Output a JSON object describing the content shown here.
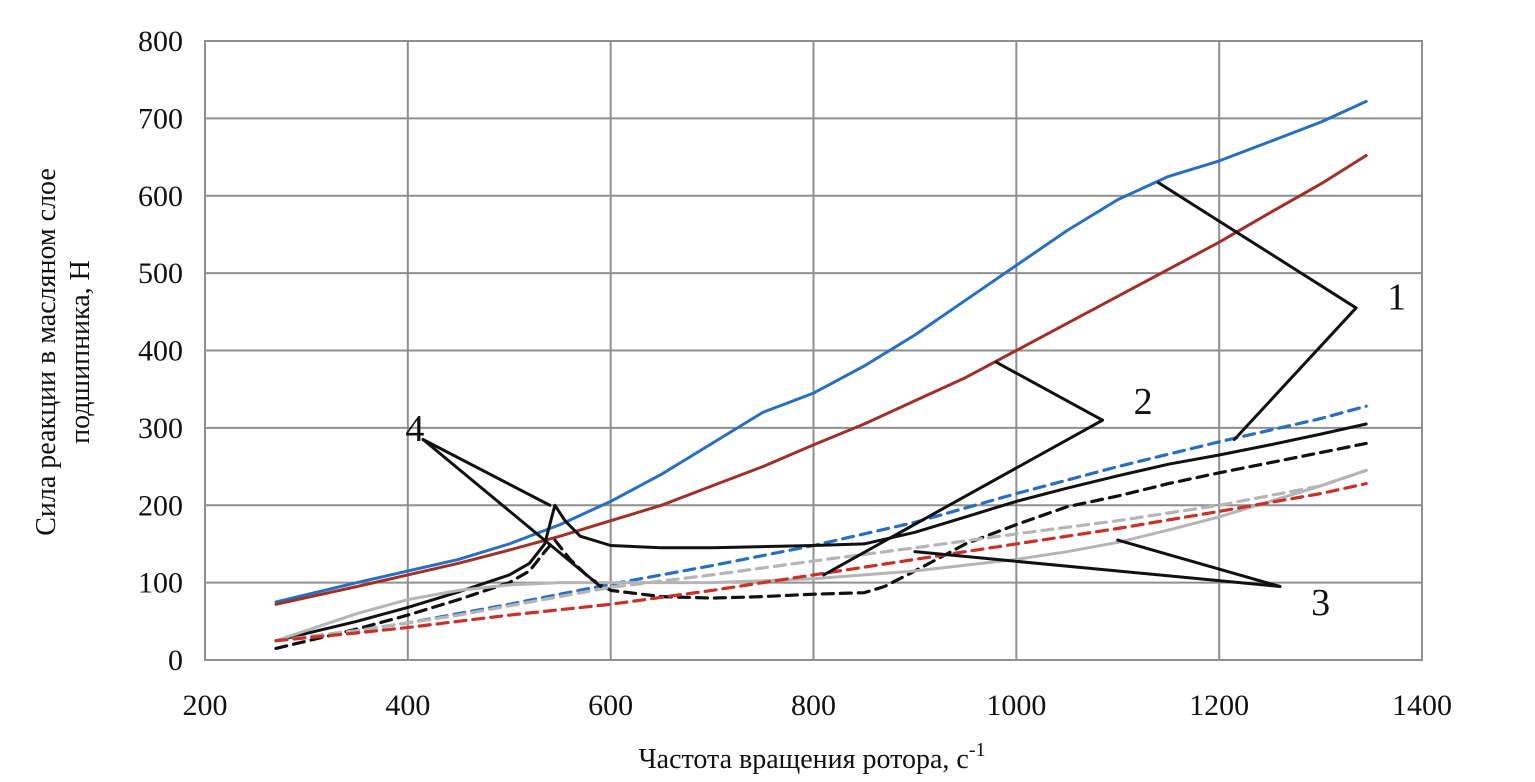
{
  "chart_data": {
    "type": "line",
    "xlabel": "Частота вращения ротора, с",
    "xlabel_sup": "-1",
    "ylabel_line1": "Сила реакции в масляном слое",
    "ylabel_line2": "подшипника,  Н",
    "xlim": [
      200,
      1400
    ],
    "ylim": [
      0,
      800
    ],
    "x_ticks": [
      200,
      400,
      600,
      800,
      1000,
      1200,
      1400
    ],
    "y_ticks": [
      0,
      100,
      200,
      300,
      400,
      500,
      600,
      700,
      800
    ],
    "grid": true,
    "legend": "none",
    "colors": {
      "blue": "#2a6ebf",
      "red": "#a0302a",
      "black": "#111111",
      "gray": "#b5b5b5",
      "red_dashed": "#c8322a",
      "gridline": "#8f8f8f"
    },
    "series": [
      {
        "color": "blue",
        "dash": false,
        "x": [
          270,
          350,
          400,
          450,
          500,
          550,
          600,
          650,
          700,
          750,
          800,
          850,
          900,
          950,
          1000,
          1050,
          1100,
          1150,
          1200,
          1250,
          1300,
          1345
        ],
        "y": [
          75,
          100,
          115,
          130,
          150,
          175,
          205,
          240,
          280,
          320,
          345,
          380,
          420,
          465,
          510,
          555,
          595,
          625,
          645,
          670,
          695,
          722
        ]
      },
      {
        "color": "red",
        "dash": false,
        "x": [
          270,
          350,
          400,
          450,
          500,
          550,
          600,
          650,
          700,
          750,
          800,
          850,
          900,
          950,
          1000,
          1050,
          1100,
          1150,
          1200,
          1250,
          1300,
          1345
        ],
        "y": [
          72,
          95,
          110,
          125,
          142,
          160,
          180,
          200,
          225,
          250,
          278,
          305,
          335,
          365,
          400,
          435,
          470,
          505,
          540,
          578,
          615,
          652
        ]
      },
      {
        "color": "blue",
        "dash": true,
        "x": [
          270,
          350,
          400,
          450,
          500,
          550,
          600,
          700,
          800,
          900,
          1000,
          1100,
          1200,
          1300,
          1345
        ],
        "y": [
          25,
          38,
          48,
          60,
          72,
          85,
          98,
          122,
          148,
          178,
          215,
          250,
          282,
          312,
          328
        ]
      },
      {
        "color": "black",
        "dash": false,
        "x": [
          270,
          350,
          400,
          450,
          500,
          520,
          535,
          545,
          555,
          570,
          600,
          650,
          700,
          800,
          850,
          900,
          950,
          1000,
          1050,
          1100,
          1150,
          1200,
          1250,
          1300,
          1345
        ],
        "y": [
          25,
          50,
          68,
          88,
          110,
          125,
          150,
          200,
          180,
          160,
          148,
          145,
          145,
          148,
          150,
          165,
          185,
          205,
          222,
          238,
          253,
          265,
          278,
          292,
          305
        ]
      },
      {
        "color": "black",
        "dash": true,
        "x": [
          270,
          350,
          400,
          450,
          500,
          520,
          535,
          545,
          560,
          580,
          600,
          650,
          700,
          750,
          800,
          850,
          870,
          900,
          950,
          1000,
          1050,
          1100,
          1150,
          1200,
          1250,
          1300,
          1345
        ],
        "y": [
          15,
          40,
          58,
          78,
          100,
          115,
          140,
          155,
          130,
          105,
          90,
          82,
          80,
          82,
          85,
          87,
          95,
          115,
          150,
          175,
          198,
          212,
          228,
          242,
          255,
          268,
          280
        ]
      },
      {
        "color": "gray",
        "dash": true,
        "x": [
          270,
          350,
          400,
          450,
          500,
          550,
          600,
          700,
          800,
          900,
          1000,
          1100,
          1200,
          1300,
          1345
        ],
        "y": [
          25,
          38,
          48,
          58,
          70,
          82,
          94,
          110,
          128,
          145,
          163,
          180,
          200,
          225,
          245
        ]
      },
      {
        "color": "gray",
        "dash": false,
        "x": [
          270,
          350,
          400,
          450,
          500,
          550,
          600,
          650,
          700,
          800,
          900,
          1000,
          1050,
          1100,
          1150,
          1200,
          1250,
          1300,
          1345
        ],
        "y": [
          25,
          60,
          78,
          90,
          97,
          100,
          100,
          100,
          100,
          105,
          115,
          130,
          140,
          152,
          168,
          185,
          205,
          225,
          245
        ]
      },
      {
        "color": "red_dashed",
        "dash": true,
        "x": [
          270,
          350,
          400,
          450,
          500,
          550,
          600,
          700,
          800,
          900,
          1000,
          1100,
          1200,
          1300,
          1345
        ],
        "y": [
          25,
          35,
          42,
          50,
          58,
          65,
          72,
          90,
          110,
          130,
          150,
          170,
          192,
          215,
          228
        ]
      }
    ],
    "annotations": [
      {
        "label": "1",
        "label_at": [
          1375,
          470
        ],
        "lines": [
          [
            [
              1335,
              455
            ],
            [
              1140,
              617
            ]
          ],
          [
            [
              1335,
              455
            ],
            [
              1215,
              285
            ]
          ]
        ]
      },
      {
        "label": "2",
        "label_at": [
          1125,
          335
        ],
        "lines": [
          [
            [
              1085,
              310
            ],
            [
              980,
              385
            ]
          ],
          [
            [
              1085,
              310
            ],
            [
              810,
              110
            ]
          ]
        ]
      },
      {
        "label": "3",
        "label_at": [
          1300,
          75
        ],
        "lines": [
          [
            [
              1260,
              95
            ],
            [
              1100,
              155
            ]
          ],
          [
            [
              1260,
              95
            ],
            [
              900,
              140
            ]
          ]
        ]
      },
      {
        "label": "4",
        "label_at": [
          407,
          300
        ],
        "lines": [
          [
            [
              415,
              285
            ],
            [
              540,
              200
            ]
          ],
          [
            [
              415,
              285
            ],
            [
              590,
              95
            ]
          ]
        ]
      }
    ]
  }
}
